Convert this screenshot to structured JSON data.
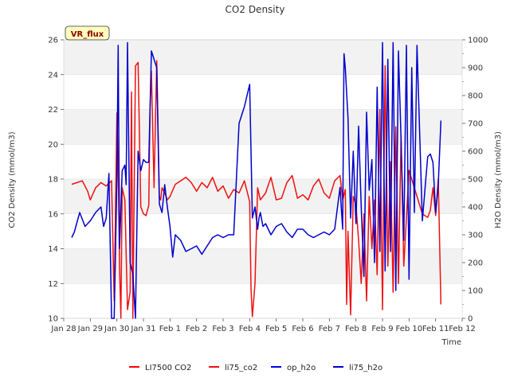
{
  "chart_data": {
    "type": "line",
    "title": "CO2 Density",
    "xlabel": "Time",
    "ylabel": "CO2 Density (mmol/m3)",
    "y2label": "H2O Density (mmol/m3)",
    "badge": "VR_flux",
    "x_ticks": [
      "Jan 28",
      "Jan 29",
      "Jan 30",
      "Jan 31",
      "Feb 1",
      "Feb 2",
      "Feb 3",
      "Feb 4",
      "Feb 5",
      "Feb 6",
      "Feb 7",
      "Feb 8",
      "Feb 9",
      "Feb 10",
      "Feb 11",
      "Feb 12"
    ],
    "xlim": [
      0,
      15
    ],
    "ylim": [
      10,
      26
    ],
    "y_ticks": [
      10,
      12,
      14,
      16,
      18,
      20,
      22,
      24,
      26
    ],
    "y2lim": [
      0,
      1000
    ],
    "y2_ticks": [
      0,
      100,
      200,
      300,
      400,
      500,
      600,
      700,
      800,
      900,
      1000
    ],
    "grid": true,
    "legend": "bottom",
    "series": [
      {
        "name": "LI7500 CO2",
        "axis": "left",
        "color": "#ff0000",
        "x": [],
        "y": []
      },
      {
        "name": "li75_co2",
        "axis": "left",
        "color": "#ee1111",
        "x": [
          0.3,
          0.5,
          0.7,
          0.9,
          1.0,
          1.2,
          1.4,
          1.6,
          1.8,
          1.9,
          2.0,
          2.05,
          2.1,
          2.15,
          2.2,
          2.3,
          2.4,
          2.5,
          2.55,
          2.6,
          2.7,
          2.8,
          2.9,
          3.0,
          3.1,
          3.2,
          3.25,
          3.3,
          3.4,
          3.5,
          3.6,
          3.65,
          3.7,
          3.8,
          3.9,
          4.0,
          4.2,
          4.4,
          4.6,
          4.8,
          5.0,
          5.2,
          5.4,
          5.6,
          5.8,
          6.0,
          6.2,
          6.4,
          6.6,
          6.8,
          7.0,
          7.05,
          7.1,
          7.2,
          7.3,
          7.4,
          7.6,
          7.8,
          8.0,
          8.2,
          8.4,
          8.6,
          8.8,
          9.0,
          9.2,
          9.4,
          9.6,
          9.8,
          10.0,
          10.2,
          10.4,
          10.5,
          10.6,
          10.65,
          10.7,
          10.8,
          10.9,
          11.0,
          11.1,
          11.2,
          11.3,
          11.4,
          11.5,
          11.6,
          11.7,
          11.8,
          11.9,
          12.0,
          12.1,
          12.2,
          12.3,
          12.4,
          12.5,
          12.6,
          12.7,
          12.8,
          13.0,
          13.5,
          13.7,
          13.8,
          13.9,
          14.0,
          14.1,
          14.2
        ],
        "y": [
          17.7,
          17.8,
          17.9,
          17.3,
          16.8,
          17.5,
          17.8,
          17.6,
          17.9,
          11.0,
          21.8,
          18.5,
          13.0,
          10.0,
          17.5,
          16.8,
          10.5,
          11.5,
          23.0,
          10.0,
          24.5,
          24.7,
          16.4,
          16.0,
          15.9,
          16.5,
          22.0,
          24.2,
          17.5,
          24.8,
          17.0,
          16.8,
          17.5,
          17.2,
          16.8,
          17.0,
          17.7,
          17.9,
          18.1,
          17.8,
          17.3,
          17.8,
          17.5,
          18.1,
          17.3,
          17.6,
          16.9,
          17.4,
          17.2,
          17.9,
          16.7,
          11.7,
          10.1,
          12.0,
          17.5,
          16.8,
          17.2,
          18.1,
          16.8,
          16.9,
          17.8,
          18.2,
          16.9,
          17.1,
          16.8,
          17.6,
          18.0,
          17.2,
          16.9,
          17.9,
          18.2,
          16.8,
          17.4,
          10.8,
          15.0,
          10.2,
          17.0,
          16.5,
          14.5,
          12.0,
          16.0,
          11.0,
          17.0,
          14.0,
          16.8,
          12.5,
          22.0,
          10.5,
          24.5,
          13.0,
          19.0,
          11.5,
          21.0,
          12.0,
          20.5,
          13.0,
          18.5,
          16.0,
          15.8,
          16.2,
          17.5,
          15.9,
          18.0,
          10.8
        ]
      },
      {
        "name": "op_h2o",
        "axis": "right",
        "color": "#0000ee",
        "x": [],
        "y": []
      },
      {
        "name": "li75_h2o",
        "axis": "right",
        "color": "#0000cc",
        "x": [
          0.3,
          0.4,
          0.6,
          0.8,
          1.0,
          1.2,
          1.4,
          1.5,
          1.6,
          1.7,
          1.8,
          1.9,
          2.0,
          2.05,
          2.1,
          2.2,
          2.3,
          2.35,
          2.4,
          2.5,
          2.6,
          2.7,
          2.8,
          2.9,
          3.0,
          3.1,
          3.2,
          3.3,
          3.4,
          3.5,
          3.6,
          3.7,
          3.8,
          3.9,
          4.0,
          4.1,
          4.2,
          4.4,
          4.6,
          4.8,
          5.0,
          5.2,
          5.4,
          5.6,
          5.8,
          6.0,
          6.2,
          6.4,
          6.6,
          6.8,
          7.0,
          7.1,
          7.2,
          7.3,
          7.35,
          7.4,
          7.5,
          7.6,
          7.8,
          8.0,
          8.2,
          8.4,
          8.6,
          8.8,
          9.0,
          9.2,
          9.4,
          9.6,
          9.8,
          10.0,
          10.2,
          10.4,
          10.5,
          10.55,
          10.6,
          10.7,
          10.8,
          10.9,
          11.0,
          11.1,
          11.2,
          11.3,
          11.4,
          11.5,
          11.6,
          11.7,
          11.8,
          11.9,
          12.0,
          12.1,
          12.2,
          12.3,
          12.4,
          12.5,
          12.6,
          12.7,
          12.8,
          12.9,
          13.0,
          13.1,
          13.2,
          13.3,
          13.5,
          13.7,
          13.8,
          13.9,
          14.0,
          14.1,
          14.2
        ],
        "y": [
          290,
          310,
          380,
          330,
          350,
          380,
          400,
          330,
          360,
          520,
          0,
          0,
          500,
          980,
          250,
          530,
          550,
          480,
          990,
          200,
          160,
          0,
          600,
          530,
          570,
          560,
          560,
          960,
          930,
          900,
          410,
          380,
          480,
          400,
          330,
          220,
          300,
          280,
          240,
          250,
          260,
          230,
          260,
          290,
          300,
          290,
          300,
          300,
          700,
          760,
          840,
          360,
          400,
          320,
          360,
          380,
          330,
          340,
          300,
          330,
          340,
          310,
          290,
          320,
          320,
          300,
          290,
          300,
          310,
          300,
          320,
          470,
          320,
          950,
          900,
          720,
          360,
          600,
          340,
          690,
          400,
          150,
          740,
          460,
          570,
          200,
          830,
          240,
          990,
          170,
          930,
          240,
          990,
          100,
          960,
          640,
          280,
          980,
          140,
          900,
          380,
          980,
          350,
          580,
          590,
          560,
          380,
          480,
          710
        ]
      }
    ]
  }
}
